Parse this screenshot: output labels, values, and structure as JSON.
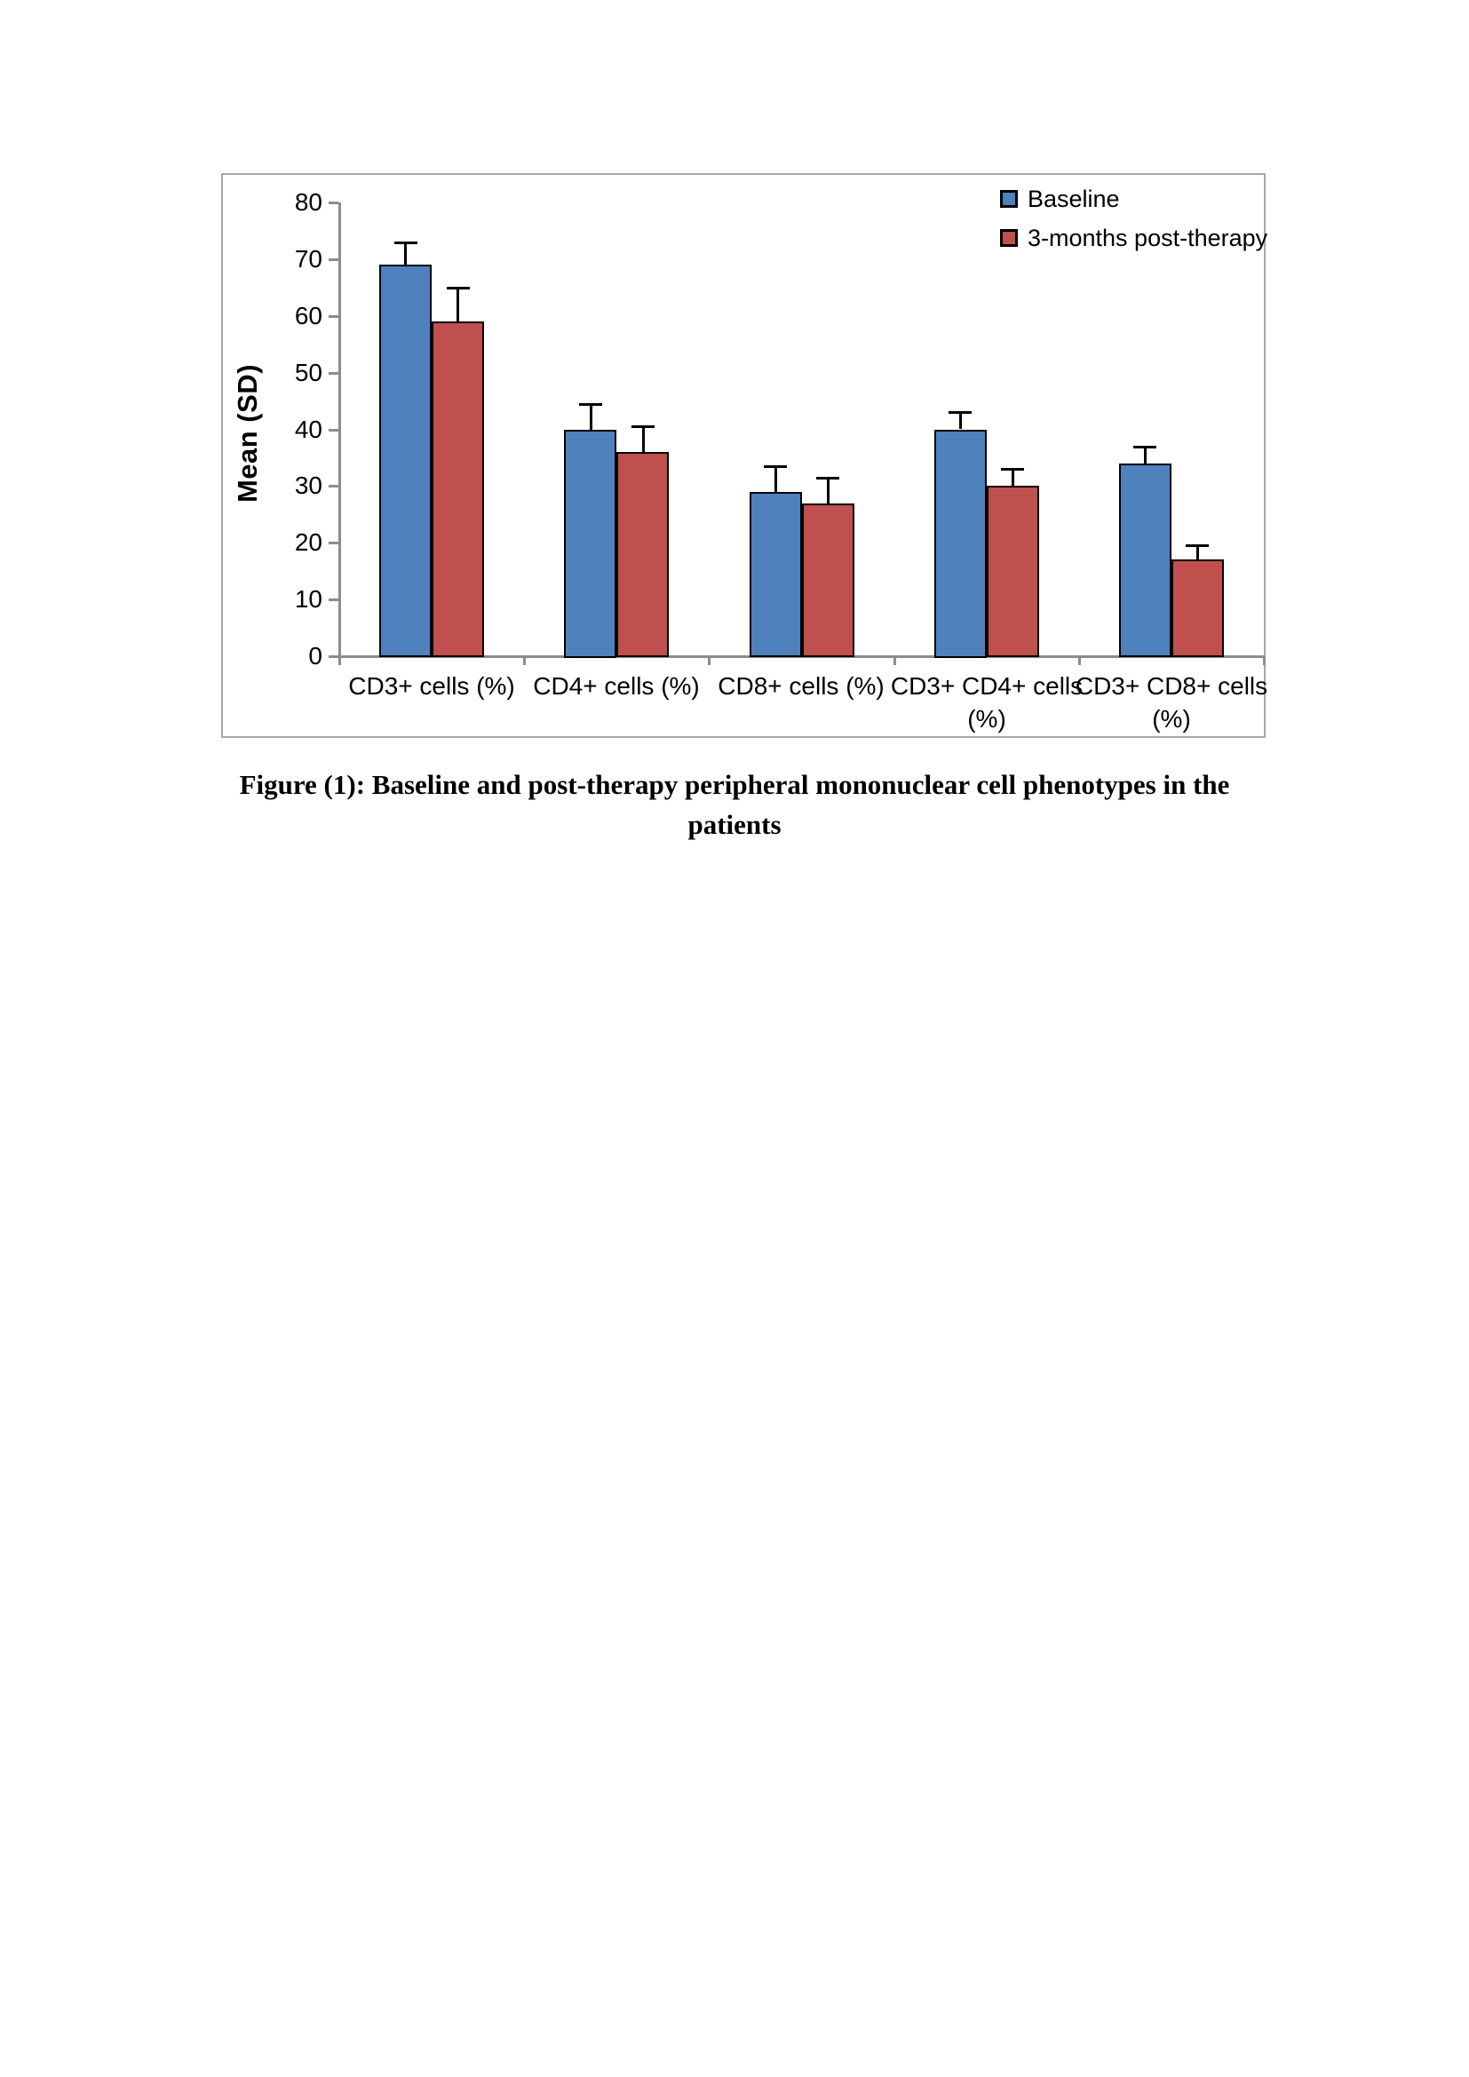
{
  "page": {
    "background": "#FFFFFF"
  },
  "figure": {
    "caption": {
      "line1": "Figure (1): Baseline and post-therapy peripheral mononuclear cell phenotypes in the",
      "line2": "patients"
    }
  },
  "chart_data": {
    "type": "bar",
    "title": "",
    "ylabel": "Mean (SD)",
    "xlabel": "",
    "ylim": [
      0,
      80
    ],
    "ytick_step": 10,
    "grid": false,
    "legend_position": "top-right-inside",
    "error_bars": "upper-sd-whiskers",
    "categories": [
      "CD3+ cells (%)",
      "CD4+ cells (%)",
      "CD8+ cells (%)",
      "CD3+ CD4+ cells (%)",
      "CD3+ CD8+ cells (%)"
    ],
    "series": [
      {
        "name": "Baseline",
        "color": "#4F81BD",
        "values": [
          69,
          40,
          29,
          40,
          34
        ],
        "sd": [
          4,
          4.5,
          4.5,
          3,
          3
        ]
      },
      {
        "name": "3-months post-therapy",
        "color": "#C0504D",
        "values": [
          59,
          36,
          27,
          30,
          17
        ],
        "sd": [
          6,
          4.5,
          4.5,
          3,
          2.5
        ]
      }
    ],
    "colors": {
      "bar_border": "#000000",
      "axis": "#8C8C8C",
      "frame_border": "#A6A6A6",
      "text": "#000000"
    }
  }
}
